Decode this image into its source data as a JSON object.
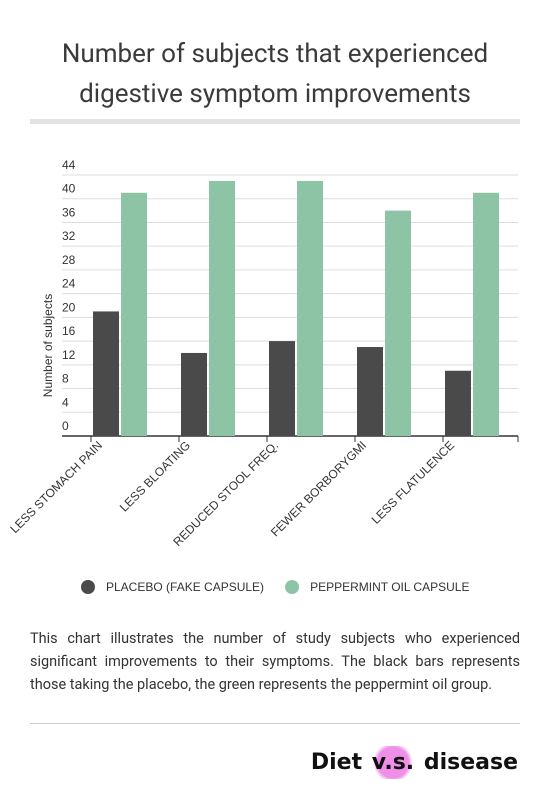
{
  "chart_data": {
    "type": "bar",
    "title": "Number of subjects that experienced digestive symptom improvements",
    "ylabel": "Number of subjects",
    "categories": [
      "LESS STOMACH PAIN",
      "LESS BLOATING",
      "REDUCED STOOL FREQ.",
      "FEWER BORBORYGMI",
      "LESS FLATULENCE"
    ],
    "series": [
      {
        "name": "PLACEBO (FAKE CAPSULE)",
        "color": "#4a4a4a",
        "values": [
          21,
          14,
          16,
          15,
          11
        ]
      },
      {
        "name": "PEPPERMINT OIL CAPSULE",
        "color": "#8ec4a6",
        "values": [
          41,
          43,
          43,
          38,
          41
        ]
      }
    ],
    "ylim": [
      0,
      44
    ],
    "yticks": [
      0,
      4,
      8,
      12,
      16,
      20,
      24,
      28,
      32,
      36,
      40,
      44
    ],
    "grid": true
  },
  "description": "This chart illustrates the number of study subjects who experienced significant improvements to their symptoms. The black bars represents those taking the placebo, the green represents the peppermint oil group.",
  "logo": {
    "part1": "Diet",
    "part2": "v.s.",
    "part3": "disease"
  }
}
